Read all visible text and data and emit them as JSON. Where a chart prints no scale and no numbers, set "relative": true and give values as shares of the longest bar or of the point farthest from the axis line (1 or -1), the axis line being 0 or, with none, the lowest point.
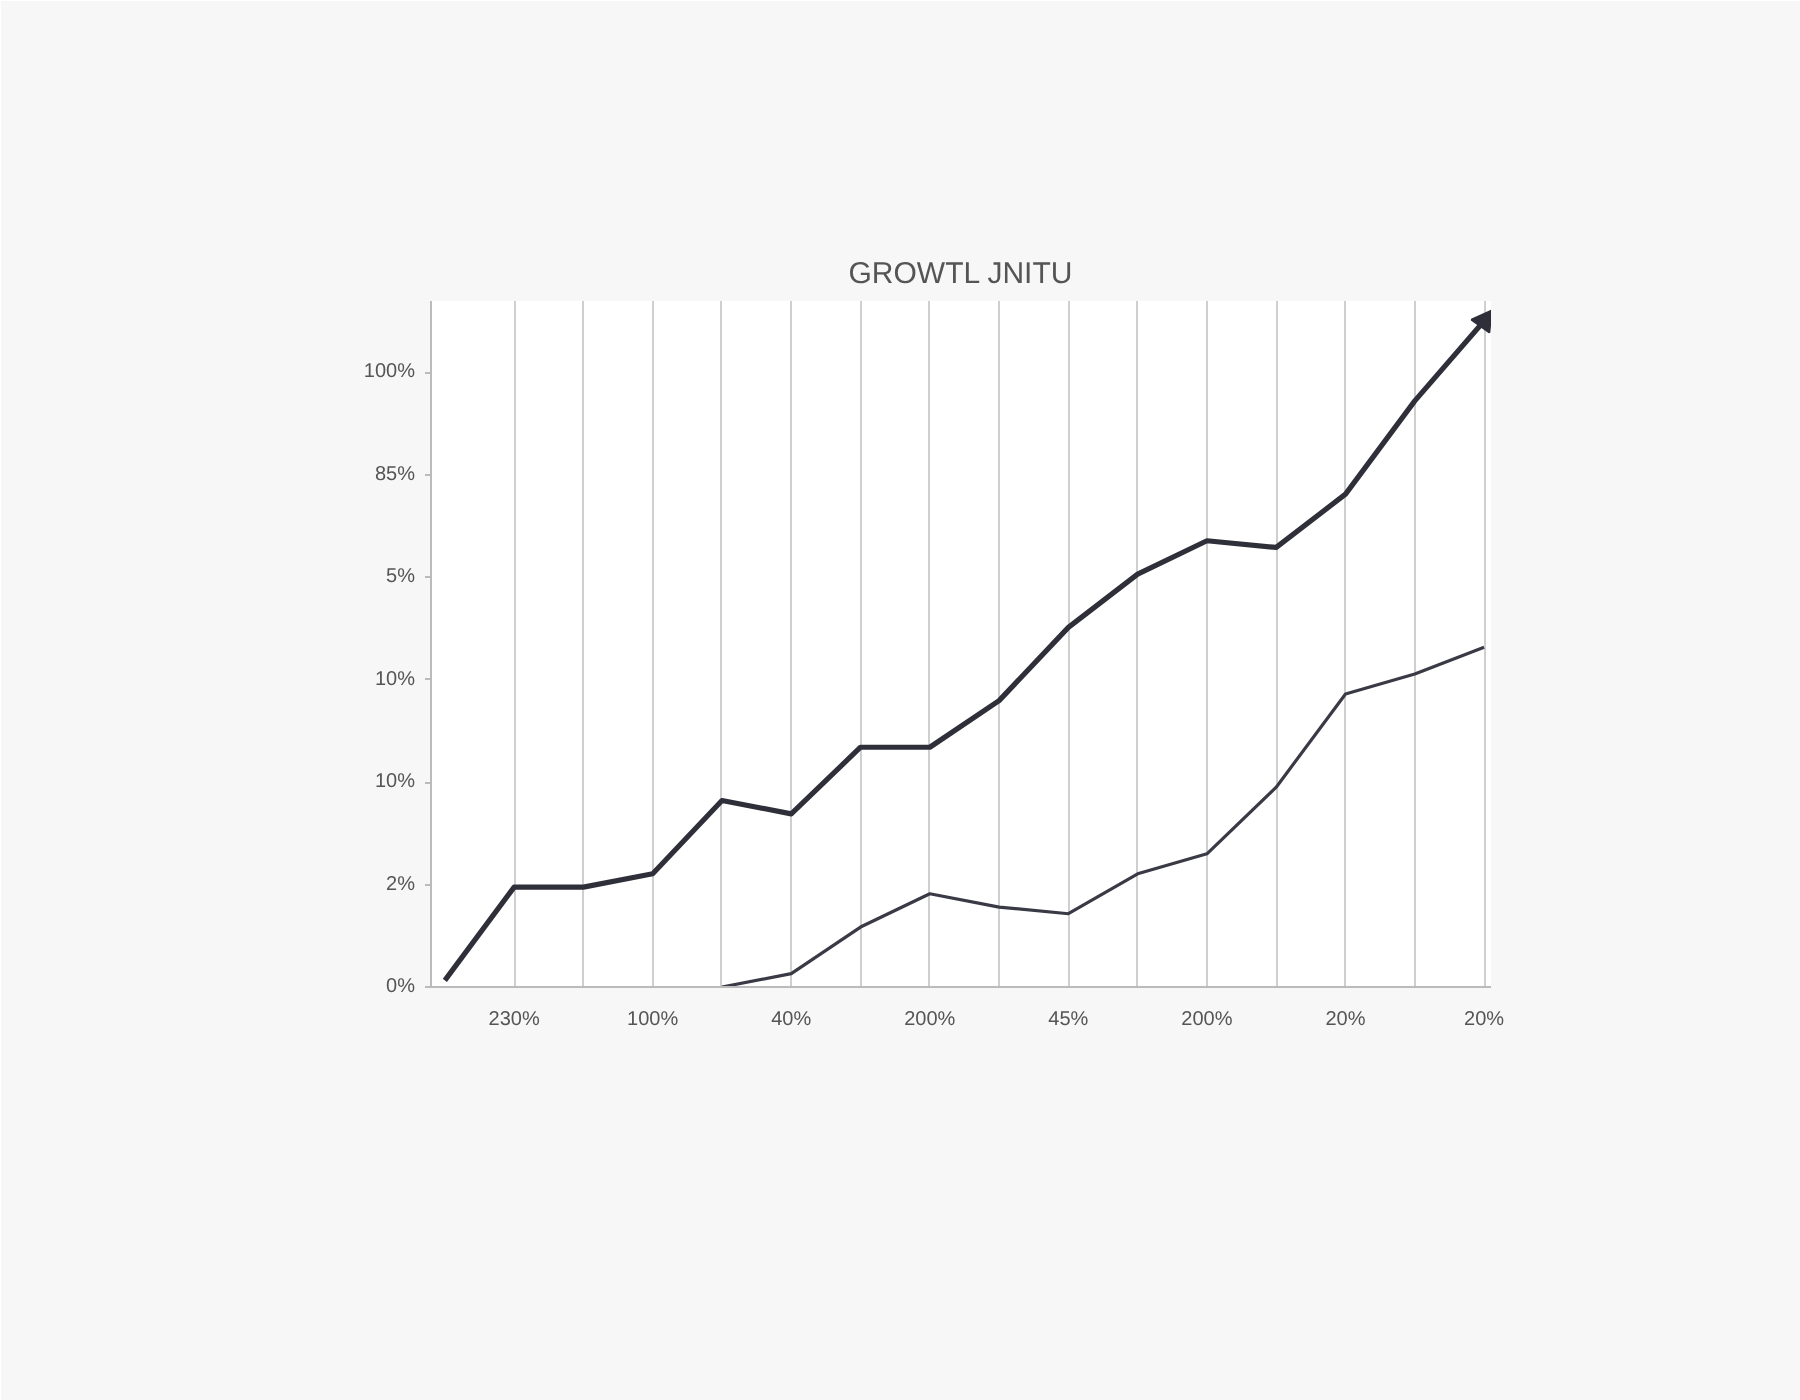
{
  "chart_data": {
    "type": "line",
    "title": "GROWTL JNITU",
    "relative": true,
    "categories": [
      null,
      "230%",
      null,
      "100%",
      null,
      "40%",
      null,
      "200%",
      null,
      "45%",
      null,
      "200%",
      null,
      "20%",
      null,
      "20%"
    ],
    "annotations": [
      "0%",
      "2%",
      "10%",
      "10%",
      "5%",
      "85%",
      "100%"
    ],
    "grid": "x",
    "marker": "none",
    "line_style": "solid",
    "series": [
      {
        "color": "#2f2f3a",
        "values": [
          0.01,
          0.15,
          0.15,
          0.17,
          0.28,
          0.26,
          0.36,
          0.36,
          0.43,
          0.54,
          0.62,
          0.67,
          0.66,
          0.74,
          0.88,
          1.0
        ]
      },
      {
        "color": "#3a3a46",
        "values": [
          null,
          null,
          null,
          null,
          0,
          0.02,
          0.09,
          0.14,
          0.12,
          0.11,
          0.17,
          0.2,
          0.3,
          0.44,
          0.47,
          0.51
        ]
      }
    ]
  }
}
